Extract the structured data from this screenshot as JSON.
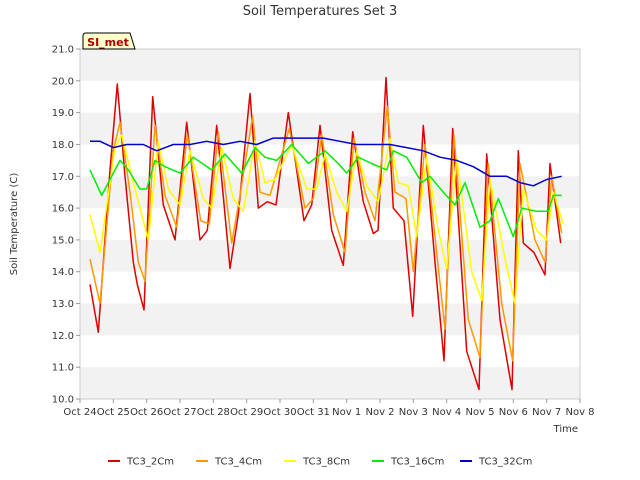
{
  "chart_data": {
    "type": "line",
    "title": "Soil Temperatures Set 3",
    "xlabel": "Time",
    "ylabel": "Soil Temperature (C)",
    "ylim": [
      10.0,
      21.0
    ],
    "xlim": [
      0,
      15
    ],
    "yticks": [
      "10.0",
      "11.0",
      "12.0",
      "13.0",
      "14.0",
      "15.0",
      "16.0",
      "17.0",
      "18.0",
      "19.0",
      "20.0",
      "21.0"
    ],
    "xticks": [
      "Oct 24",
      "Oct 25",
      "Oct 26",
      "Oct 27",
      "Oct 28",
      "Oct 29",
      "Oct 30",
      "Oct 31",
      "Nov 1",
      "Nov 2",
      "Nov 3",
      "Nov 4",
      "Nov 5",
      "Nov 6",
      "Nov 7",
      "Nov 8"
    ],
    "badge": "SI_met",
    "legend_position": "bottom",
    "grid": "alternating horizontal bands",
    "series": [
      {
        "name": "TC3_2Cm",
        "color": "#dd0000",
        "x": [
          0.3,
          0.55,
          0.9,
          1.12,
          1.35,
          1.6,
          1.72,
          1.92,
          2.18,
          2.5,
          2.85,
          3.2,
          3.6,
          3.82,
          4.1,
          4.5,
          4.75,
          5.1,
          5.35,
          5.62,
          5.88,
          6.25,
          6.72,
          6.95,
          7.2,
          7.55,
          7.9,
          8.18,
          8.5,
          8.8,
          8.94,
          9.18,
          9.4,
          9.72,
          9.98,
          10.3,
          10.65,
          10.92,
          11.18,
          11.6,
          11.97,
          12.2,
          12.6,
          12.96,
          13.15,
          13.3,
          13.62,
          13.95,
          14.1,
          14.42
        ],
        "y": [
          13.6,
          12.1,
          17.2,
          19.9,
          17.0,
          14.3,
          13.6,
          12.8,
          19.5,
          16.1,
          15.0,
          18.7,
          15.0,
          15.3,
          18.6,
          14.1,
          15.8,
          19.6,
          16.0,
          16.2,
          16.1,
          19.0,
          15.6,
          16.1,
          18.6,
          15.3,
          14.2,
          18.4,
          16.2,
          15.2,
          15.3,
          20.1,
          16.0,
          15.6,
          12.6,
          18.6,
          14.3,
          11.2,
          18.5,
          11.5,
          10.3,
          17.7,
          12.5,
          10.3,
          17.8,
          14.9,
          14.6,
          13.9,
          17.4,
          14.9
        ]
      },
      {
        "name": "TC3_4Cm",
        "color": "#ff9900",
        "x": [
          0.3,
          0.6,
          1.0,
          1.2,
          1.5,
          1.75,
          1.95,
          2.25,
          2.55,
          2.9,
          3.22,
          3.62,
          3.88,
          4.15,
          4.55,
          4.8,
          5.18,
          5.4,
          5.7,
          6.28,
          6.75,
          7.0,
          7.25,
          7.6,
          7.95,
          8.22,
          8.55,
          8.85,
          9.22,
          9.45,
          9.78,
          10.0,
          10.35,
          10.7,
          10.95,
          11.22,
          11.65,
          12.0,
          12.25,
          12.65,
          12.98,
          13.2,
          13.65,
          13.95,
          14.15,
          14.45
        ],
        "y": [
          14.4,
          13.0,
          17.8,
          18.7,
          16.5,
          14.3,
          13.7,
          18.6,
          16.4,
          15.4,
          18.3,
          15.6,
          15.5,
          18.4,
          14.9,
          16.4,
          18.9,
          16.5,
          16.4,
          18.5,
          16.0,
          16.3,
          18.3,
          15.8,
          14.6,
          18.2,
          16.5,
          15.6,
          19.2,
          16.5,
          16.3,
          14.0,
          18.0,
          14.6,
          12.2,
          18.3,
          12.5,
          11.3,
          17.4,
          13.0,
          11.2,
          17.4,
          15.0,
          14.3,
          17.0,
          15.2
        ]
      },
      {
        "name": "TC3_8Cm",
        "color": "#ffff00",
        "x": [
          0.3,
          0.6,
          1.05,
          1.25,
          1.6,
          1.85,
          2.05,
          2.35,
          2.65,
          3.0,
          3.3,
          3.7,
          3.95,
          4.25,
          4.6,
          4.9,
          5.25,
          5.55,
          5.85,
          6.35,
          6.8,
          7.1,
          7.35,
          7.7,
          8.0,
          8.3,
          8.6,
          8.95,
          9.3,
          9.55,
          9.85,
          10.1,
          10.4,
          10.75,
          11.0,
          11.3,
          11.75,
          12.05,
          12.3,
          12.75,
          13.05,
          13.3,
          13.7,
          14.0,
          14.2,
          14.5
        ],
        "y": [
          15.8,
          14.6,
          17.9,
          18.3,
          16.8,
          15.8,
          15.0,
          18.1,
          16.6,
          16.1,
          17.8,
          16.3,
          16.0,
          17.9,
          16.3,
          15.9,
          18.1,
          16.8,
          16.9,
          18.0,
          16.6,
          16.6,
          17.7,
          16.5,
          15.9,
          17.8,
          16.7,
          16.2,
          18.2,
          16.8,
          16.7,
          15.1,
          17.6,
          15.3,
          14.1,
          17.6,
          14.0,
          13.1,
          16.9,
          14.4,
          13.0,
          16.6,
          15.3,
          15.0,
          16.5,
          15.5
        ]
      },
      {
        "name": "TC3_16Cm",
        "color": "#00ee00",
        "x": [
          0.3,
          0.65,
          1.2,
          1.45,
          1.8,
          2.0,
          2.25,
          2.55,
          3.0,
          3.4,
          3.95,
          4.35,
          4.85,
          5.25,
          5.55,
          5.9,
          6.35,
          6.85,
          7.35,
          7.75,
          8.0,
          8.35,
          8.75,
          9.2,
          9.4,
          9.8,
          10.25,
          10.5,
          10.9,
          11.25,
          11.55,
          12.0,
          12.3,
          12.55,
          13.0,
          13.25,
          13.7,
          14.05,
          14.2,
          14.45
        ],
        "y": [
          17.2,
          16.4,
          17.5,
          17.2,
          16.6,
          16.6,
          17.5,
          17.3,
          17.1,
          17.6,
          17.2,
          17.7,
          17.1,
          17.9,
          17.6,
          17.5,
          18.0,
          17.4,
          17.8,
          17.4,
          17.1,
          17.6,
          17.4,
          17.2,
          17.8,
          17.6,
          16.8,
          17.0,
          16.5,
          16.1,
          16.8,
          15.4,
          15.6,
          16.3,
          15.1,
          16.0,
          15.9,
          15.9,
          16.4,
          16.4
        ]
      },
      {
        "name": "TC3_32Cm",
        "color": "#0000cc",
        "x": [
          0.3,
          0.6,
          1.0,
          1.4,
          1.9,
          2.3,
          2.8,
          3.3,
          3.8,
          4.3,
          4.8,
          5.3,
          5.8,
          6.3,
          6.8,
          7.3,
          7.8,
          8.3,
          8.8,
          9.3,
          9.8,
          10.3,
          10.8,
          11.3,
          11.8,
          12.3,
          12.8,
          13.2,
          13.6,
          14.0,
          14.45
        ],
        "y": [
          18.1,
          18.1,
          17.9,
          18.0,
          18.0,
          17.8,
          18.0,
          18.0,
          18.1,
          18.0,
          18.1,
          18.0,
          18.2,
          18.2,
          18.2,
          18.2,
          18.1,
          18.0,
          18.0,
          18.0,
          17.9,
          17.8,
          17.6,
          17.5,
          17.3,
          17.0,
          17.0,
          16.8,
          16.7,
          16.9,
          17.0
        ]
      }
    ]
  }
}
